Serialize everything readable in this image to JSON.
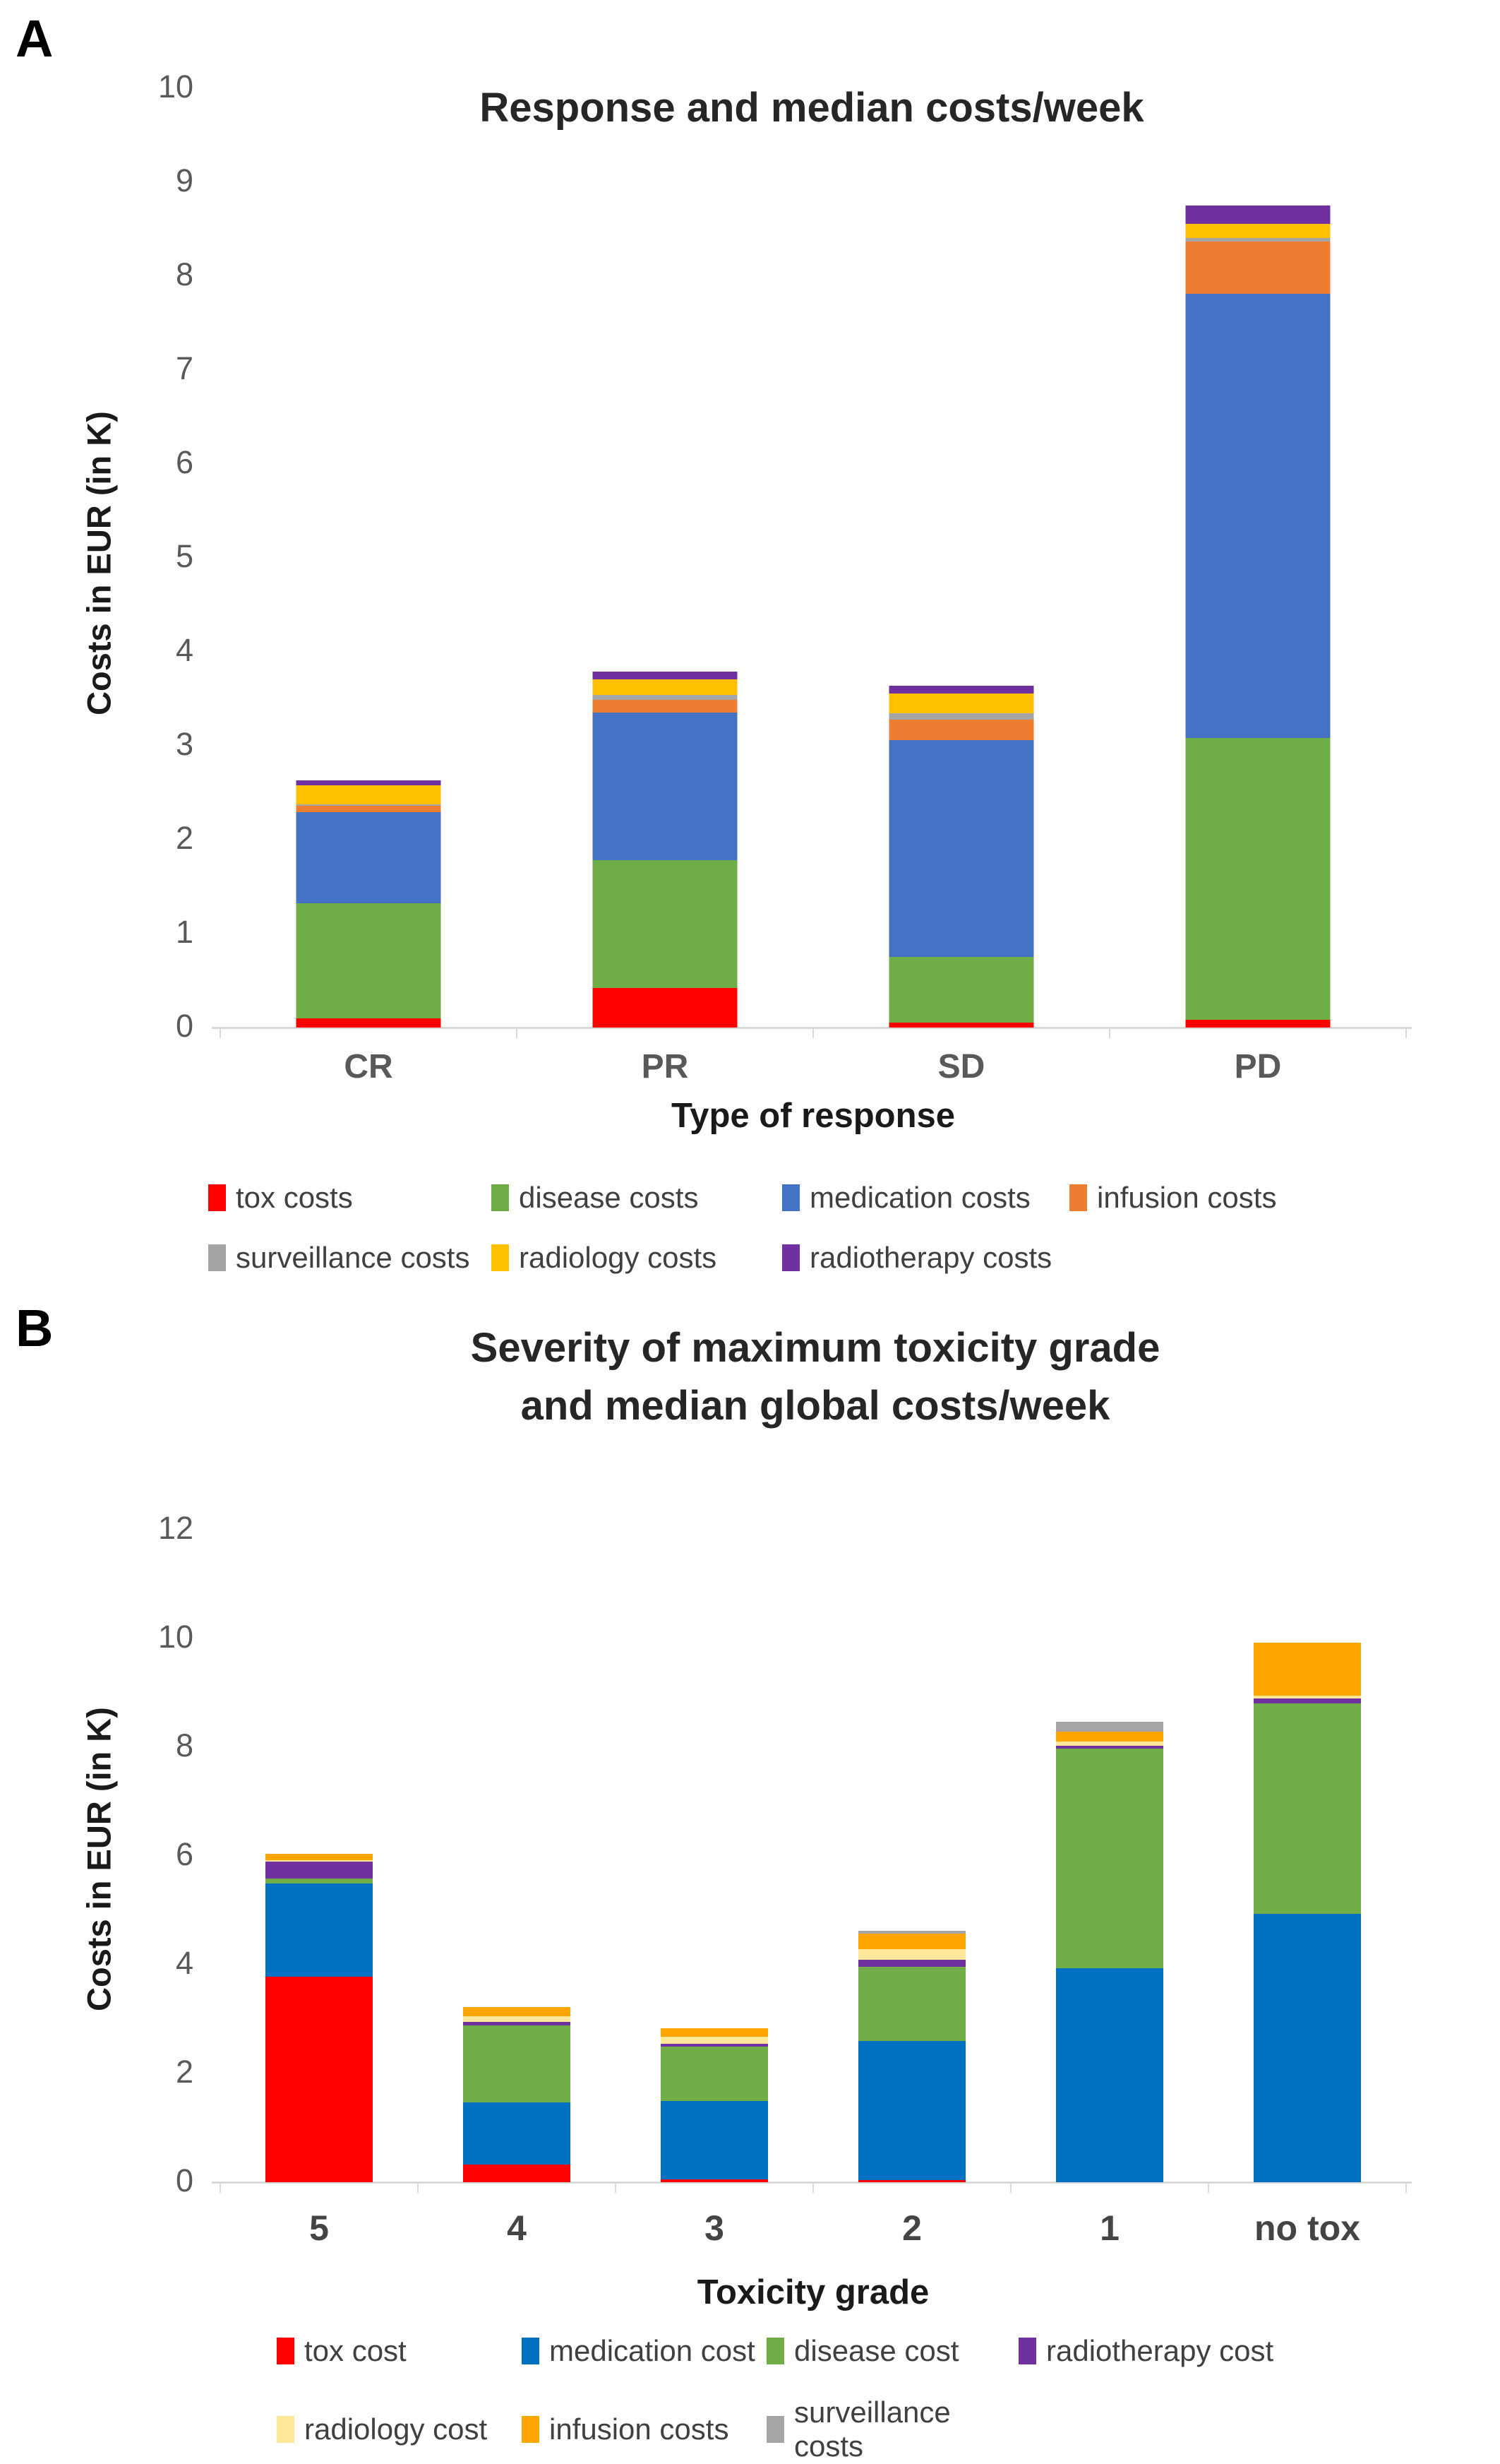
{
  "figure": {
    "panel_a_letter": "A",
    "panel_b_letter": "B"
  },
  "chart_data": [
    {
      "type": "bar",
      "stacked": true,
      "title": "Response and median costs/week",
      "ylabel": "Costs in EUR (in K)",
      "xlabel": "Type of response",
      "ylim": [
        0,
        10
      ],
      "ytick_step": 1,
      "grid": false,
      "legend_position": "bottom",
      "legend_rows": [
        4,
        3
      ],
      "categories": [
        "CR",
        "PR",
        "SD",
        "PD"
      ],
      "series": [
        {
          "name": "tox costs",
          "color": "#FF0000",
          "values": [
            0.1,
            0.42,
            0.05,
            0.08
          ]
        },
        {
          "name": "disease costs",
          "color": "#70AD47",
          "values": [
            1.22,
            1.36,
            0.7,
            3.0
          ]
        },
        {
          "name": "medication costs",
          "color": "#4472C4",
          "values": [
            0.97,
            1.57,
            2.31,
            4.73
          ]
        },
        {
          "name": "infusion costs",
          "color": "#ED7D31",
          "values": [
            0.07,
            0.14,
            0.22,
            0.56
          ]
        },
        {
          "name": "surveillance costs",
          "color": "#A5A5A5",
          "values": [
            0.02,
            0.05,
            0.07,
            0.04
          ]
        },
        {
          "name": "radiology costs",
          "color": "#FFC000",
          "values": [
            0.2,
            0.17,
            0.21,
            0.15
          ]
        },
        {
          "name": "radiotherapy costs",
          "color": "#7030A0",
          "values": [
            0.05,
            0.08,
            0.08,
            0.19
          ]
        }
      ],
      "bar_totals": [
        2.63,
        3.79,
        3.64,
        8.75
      ]
    },
    {
      "type": "bar",
      "stacked": true,
      "title": "Severity of maximum toxicity grade and median global costs/week",
      "ylabel": "Costs in EUR (in K)",
      "xlabel": "Toxicity grade",
      "ylim": [
        0,
        12
      ],
      "ytick_step": 2,
      "grid": false,
      "legend_position": "bottom",
      "legend_rows": [
        4,
        3
      ],
      "categories": [
        "5",
        "4",
        "3",
        "2",
        "1",
        "no tox"
      ],
      "series": [
        {
          "name": "tox cost",
          "color": "#FF0000",
          "values": [
            3.78,
            0.33,
            0.05,
            0.04,
            0.0,
            0.0
          ]
        },
        {
          "name": "medication cost",
          "color": "#0070C0",
          "values": [
            1.72,
            1.14,
            1.45,
            2.56,
            3.93,
            4.93
          ]
        },
        {
          "name": "disease cost",
          "color": "#70AD47",
          "values": [
            0.09,
            1.42,
            1.0,
            1.36,
            4.05,
            3.87
          ]
        },
        {
          "name": "radiotherapy cost",
          "color": "#7030A0",
          "values": [
            0.31,
            0.06,
            0.04,
            0.13,
            0.04,
            0.09
          ]
        },
        {
          "name": "radiology cost",
          "color": "#FFE699",
          "values": [
            0.02,
            0.1,
            0.13,
            0.19,
            0.09,
            0.06
          ]
        },
        {
          "name": "infusion costs",
          "color": "#FFA500",
          "values": [
            0.12,
            0.17,
            0.16,
            0.29,
            0.17,
            0.97
          ]
        },
        {
          "name": "surveillance costs",
          "color": "#A6A6A6",
          "values": [
            0.0,
            0.0,
            0.0,
            0.06,
            0.19,
            0.0
          ]
        }
      ],
      "bar_totals": [
        6.04,
        3.22,
        2.83,
        4.63,
        8.47,
        9.92
      ]
    }
  ]
}
